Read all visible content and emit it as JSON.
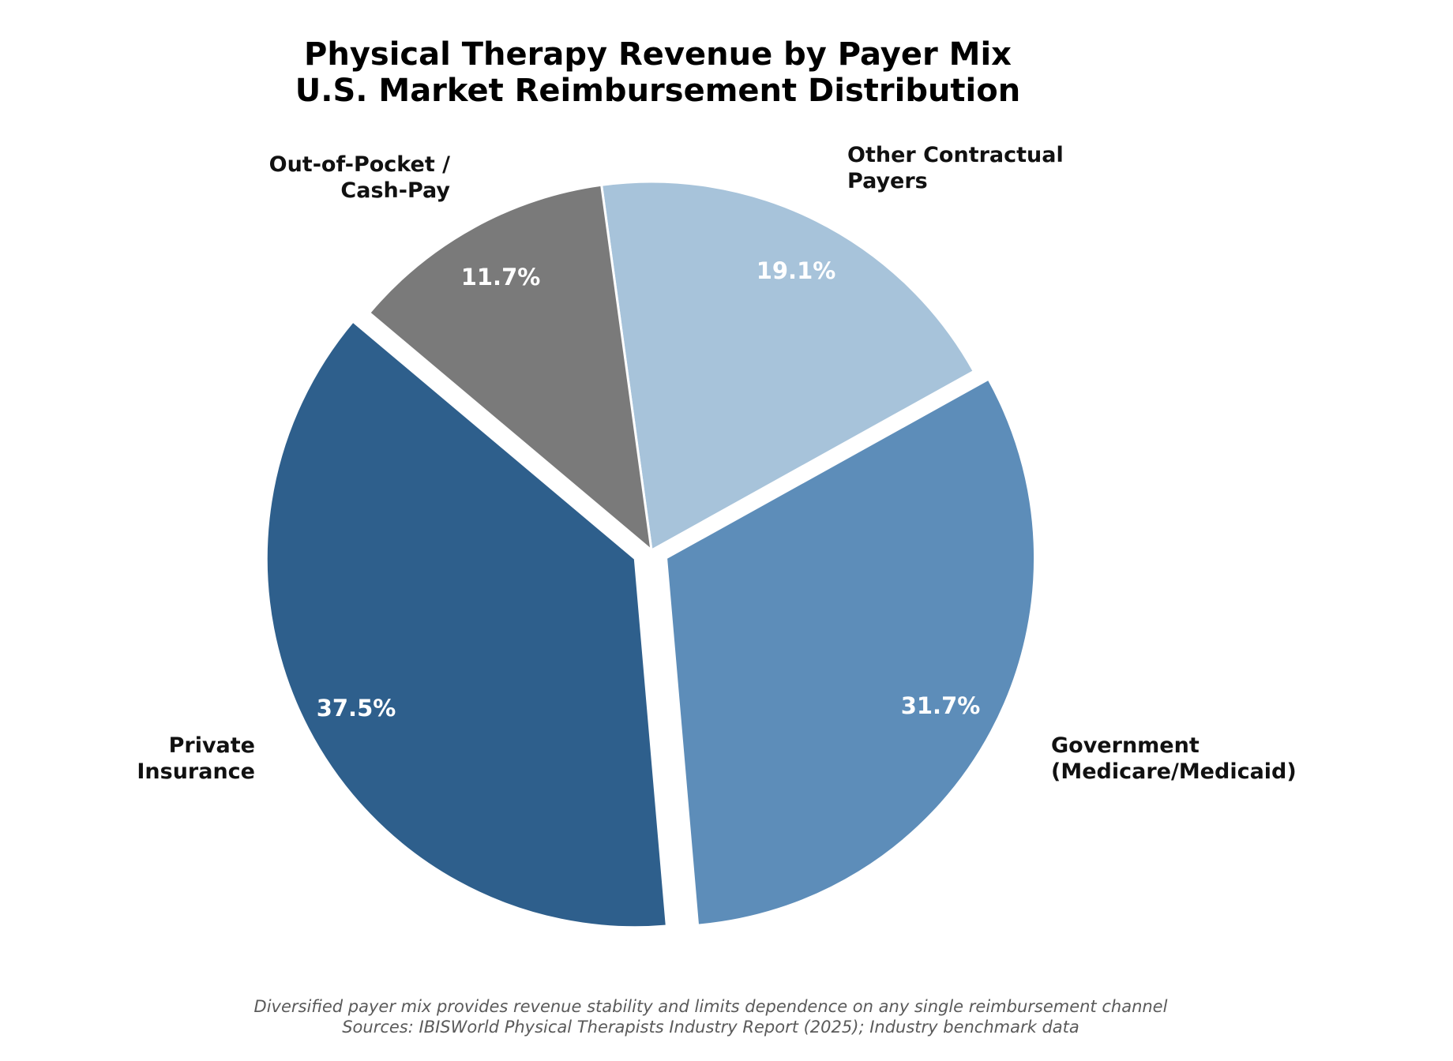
{
  "title": {
    "line1": "Physical Therapy Revenue by Payer Mix",
    "line2": "U.S. Market Reimbursement Distribution"
  },
  "footer": {
    "note": "Diversified payer mix provides revenue stability and limits dependence on any single reimbursement channel",
    "sources": "Sources: IBISWorld Physical Therapists Industry Report (2025); Industry benchmark data"
  },
  "labels": {
    "other": {
      "line1": "Other Contractual",
      "line2": "Payers",
      "pct": "19.1%"
    },
    "government": {
      "line1": "Government",
      "line2": "(Medicare/Medicaid)",
      "pct": "31.7%"
    },
    "private": {
      "line1": "Private",
      "line2": "Insurance",
      "pct": "37.5%"
    },
    "oop": {
      "line1": "Out-of-Pocket /",
      "line2": "Cash-Pay",
      "pct": "11.7%"
    }
  },
  "chart_data": {
    "type": "pie",
    "title": "Physical Therapy Revenue by Payer Mix\nU.S. Market Reimbursement Distribution",
    "categories": [
      "Other Contractual Payers",
      "Government (Medicare/Medicaid)",
      "Private Insurance",
      "Out-of-Pocket / Cash-Pay"
    ],
    "values": [
      19.1,
      31.7,
      37.5,
      11.7
    ],
    "unit": "%",
    "colors": [
      "#a7c3da",
      "#5d8db9",
      "#2e5f8c",
      "#7a7a7a"
    ],
    "explode": [
      0,
      0.045,
      0.05,
      0
    ],
    "start_angle_deg": 97.8,
    "direction": "clockwise",
    "legend": "none (direct labels)",
    "footnote": "Diversified payer mix provides revenue stability and limits dependence on any single reimbursement channel",
    "source": "Sources: IBISWorld Physical Therapists Industry Report (2025); Industry benchmark data"
  }
}
